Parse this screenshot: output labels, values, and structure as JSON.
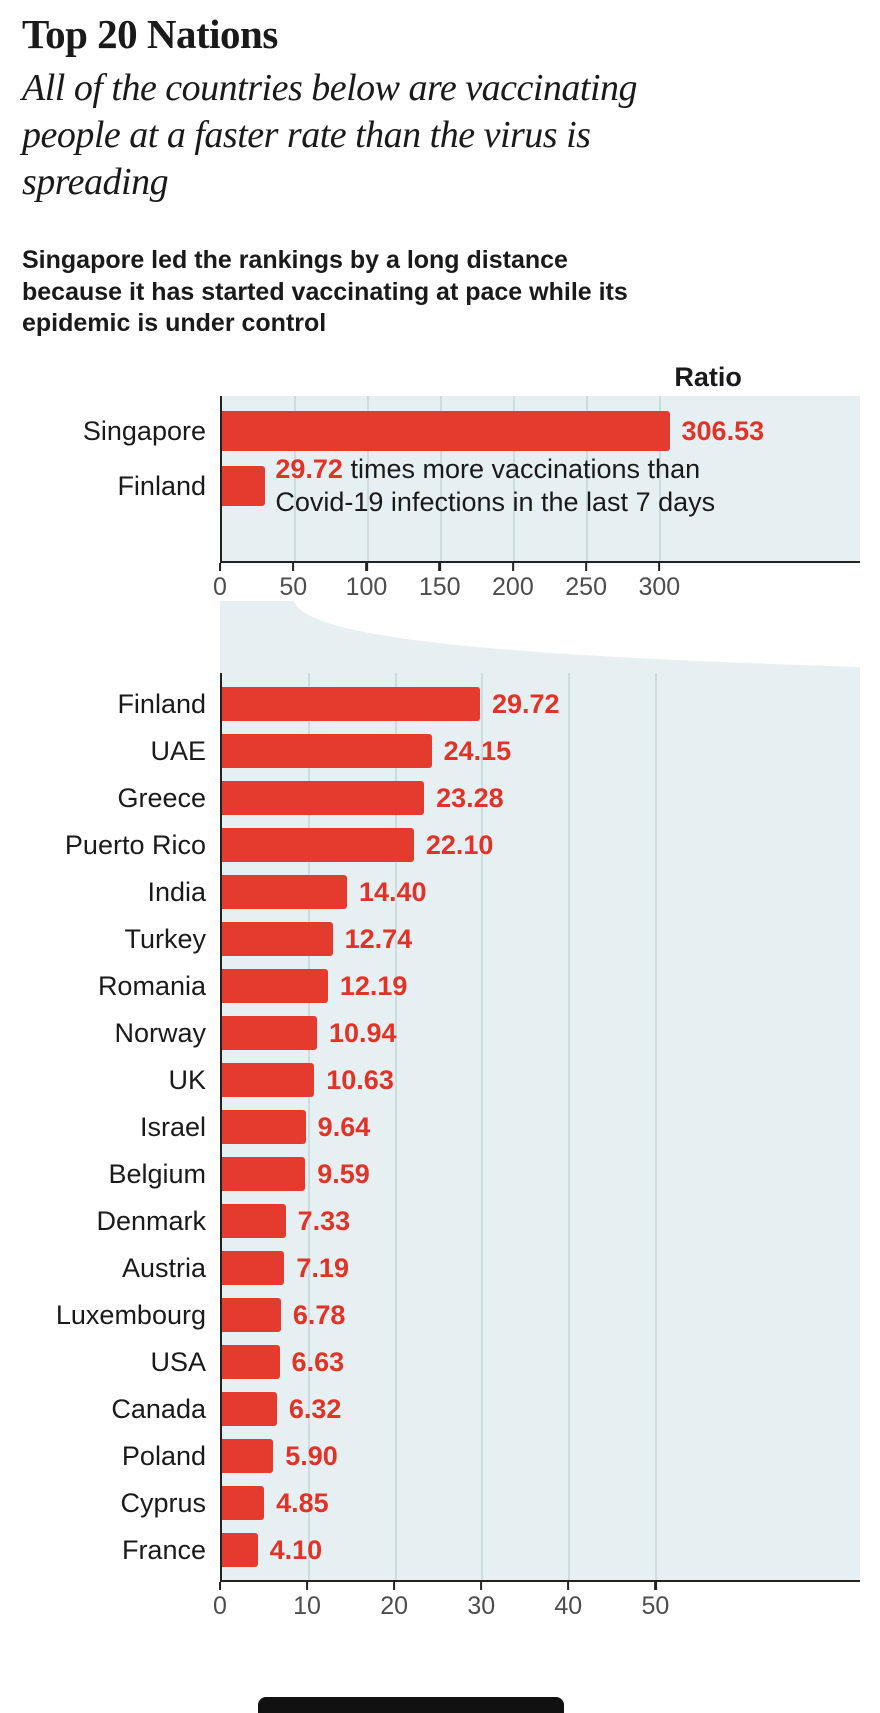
{
  "page": {
    "title": "Top 20 Nations",
    "subtitle": "All of the countries below are vaccinating people at a faster rate than the virus is spreading",
    "description": "Singapore led the rankings by a long distance because it has started vaccinating at pace while its epidemic is under control"
  },
  "colors": {
    "bar_red": "#e53b2e",
    "value_red": "#e23327",
    "plot_background": "#e6eff2",
    "gridline": "#ccdce1",
    "axis": "#222222",
    "text_dark": "#1a1a1a",
    "tick_label": "#4d4d4d"
  },
  "chart_data": [
    {
      "type": "bar",
      "orientation": "horizontal",
      "header_label": "Ratio",
      "categories": [
        "Singapore",
        "Finland"
      ],
      "values": [
        306.53,
        29.72
      ],
      "ticks": [
        0,
        50,
        100,
        150,
        200,
        250,
        300
      ],
      "xlim": [
        0,
        437
      ],
      "grid": true,
      "legend": null,
      "annotation": {
        "row": 1,
        "value": "29.72",
        "lines": [
          "times more vaccinations than",
          "Covid-19 infections in the last 7 days"
        ]
      }
    },
    {
      "type": "bar",
      "orientation": "horizontal",
      "categories": [
        "Finland",
        "UAE",
        "Greece",
        "Puerto Rico",
        "India",
        "Turkey",
        "Romania",
        "Norway",
        "UK",
        "Israel",
        "Belgium",
        "Denmark",
        "Austria",
        "Luxembourg",
        "USA",
        "Canada",
        "Poland",
        "Cyprus",
        "France"
      ],
      "values": [
        29.72,
        24.15,
        23.28,
        22.1,
        14.4,
        12.74,
        12.19,
        10.94,
        10.63,
        9.64,
        9.59,
        7.33,
        7.19,
        6.78,
        6.63,
        6.32,
        5.9,
        4.85,
        4.1
      ],
      "ticks": [
        0,
        10,
        20,
        30,
        40,
        50
      ],
      "xlim": [
        0,
        73.5
      ],
      "grid": true,
      "legend": null
    }
  ]
}
